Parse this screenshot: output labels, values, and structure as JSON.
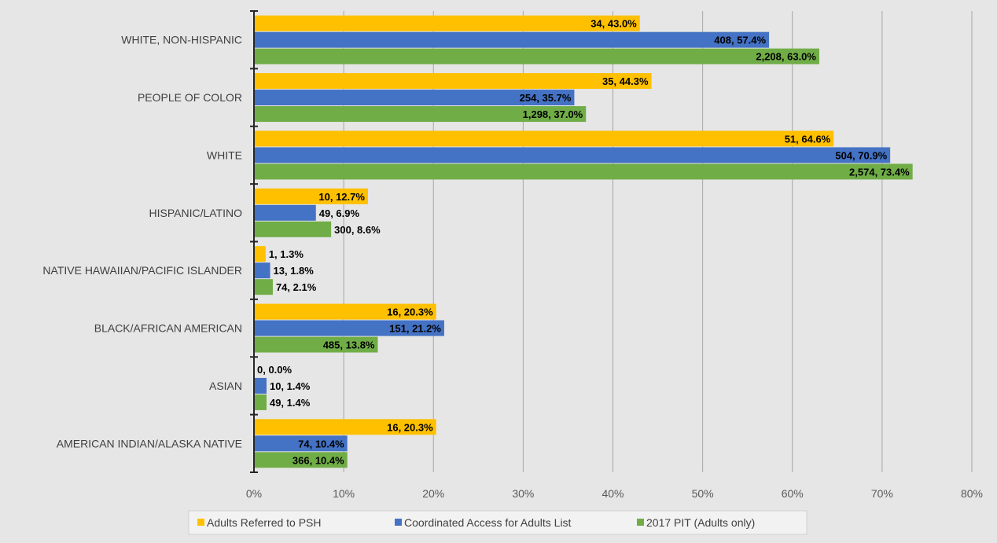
{
  "chart_data": {
    "type": "bar",
    "orientation": "horizontal",
    "title": "",
    "xlabel": "",
    "ylabel": "",
    "xlim": [
      0,
      0.8
    ],
    "x_ticks": [
      "0%",
      "10%",
      "20%",
      "30%",
      "40%",
      "50%",
      "60%",
      "70%",
      "80%"
    ],
    "grid": "vertical",
    "legend_position": "bottom",
    "categories": [
      "WHITE, NON-HISPANIC",
      "PEOPLE OF COLOR",
      "WHITE",
      "HISPANIC/LATINO",
      "NATIVE HAWAIIAN/PACIFIC ISLANDER",
      "BLACK/AFRICAN AMERICAN",
      "ASIAN",
      "AMERICAN INDIAN/ALASKA NATIVE"
    ],
    "series": [
      {
        "name": "Adults Referred to PSH",
        "color": "#ffc000",
        "values": [
          0.43,
          0.443,
          0.646,
          0.127,
          0.013,
          0.203,
          0.0,
          0.203
        ],
        "labels": [
          "34, 43.0%",
          "35, 44.3%",
          "51, 64.6%",
          "10, 12.7%",
          "1, 1.3%",
          "16, 20.3%",
          "0, 0.0%",
          "16, 20.3%"
        ]
      },
      {
        "name": "Coordinated Access for Adults List",
        "color": "#4472c4",
        "values": [
          0.574,
          0.357,
          0.709,
          0.069,
          0.018,
          0.212,
          0.014,
          0.104
        ],
        "labels": [
          "408, 57.4%",
          "254, 35.7%",
          "504, 70.9%",
          "49, 6.9%",
          "13, 1.8%",
          "151, 21.2%",
          "10, 1.4%",
          "74, 10.4%"
        ]
      },
      {
        "name": "2017 PIT (Adults only)",
        "color": "#70ad47",
        "values": [
          0.63,
          0.37,
          0.734,
          0.086,
          0.021,
          0.138,
          0.014,
          0.104
        ],
        "labels": [
          "2,208, 63.0%",
          "1,298, 37.0%",
          "2,574, 73.4%",
          "300, 8.6%",
          "74, 2.1%",
          "485, 13.8%",
          "49, 1.4%",
          "366, 10.4%"
        ]
      }
    ]
  }
}
